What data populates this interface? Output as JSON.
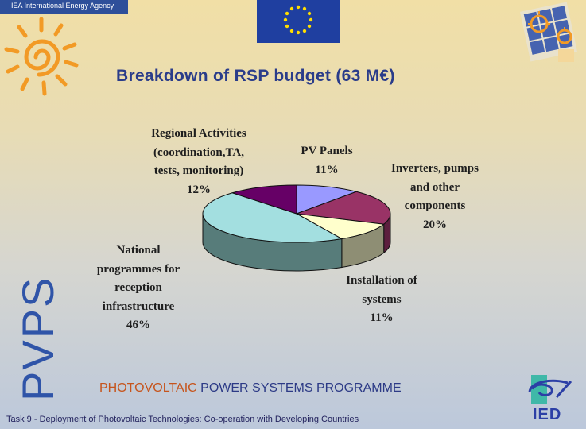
{
  "header": {
    "agency": "IEA International Energy Agency"
  },
  "title": "Breakdown of RSP budget (63 M€)",
  "side_label": "PVPS",
  "footer": {
    "programme_highlight": "PHOTOVOLTAIC",
    "programme_rest": "POWER SYSTEMS PROGRAMME",
    "task": "Task 9 - Deployment of Photovoltaic Technologies: Co-operation with Developing Countries",
    "ied_logo_text": "IED"
  },
  "colors": {
    "title": "#2a3c8a",
    "side_label": "#2f54a8",
    "highlight": "#c6541c"
  },
  "icons": {
    "top_left": "sun-logo-icon",
    "top_center": "eu-flag-icon",
    "top_right": "solar-logo-icon",
    "bottom_right": "ied-logo-icon"
  },
  "chart_data": {
    "type": "pie",
    "style": "3d",
    "title": "Breakdown of RSP budget (63 M€)",
    "slices": [
      {
        "lines": [
          "PV Panels",
          "11%"
        ],
        "value": 11,
        "color": "#9999ff",
        "side": "#5a5ab0"
      },
      {
        "lines": [
          "Inverters, pumps",
          "and other",
          "components",
          "20%"
        ],
        "value": 20,
        "color": "#993366",
        "side": "#5c1e3e"
      },
      {
        "lines": [
          "Installation of",
          "systems",
          "11%"
        ],
        "value": 11,
        "color": "#ffffcc",
        "side": "#8e8e74"
      },
      {
        "lines": [
          "National",
          "programmes for",
          "reception",
          "infrastructure",
          "46%"
        ],
        "value": 46,
        "color": "#a3dfe0",
        "side": "#577c7a"
      },
      {
        "lines": [
          "Regional Activities",
          "(coordination,TA,",
          "tests, monitoring)",
          "12%"
        ],
        "value": 12,
        "color": "#660066",
        "side": "#3b003b"
      }
    ]
  }
}
